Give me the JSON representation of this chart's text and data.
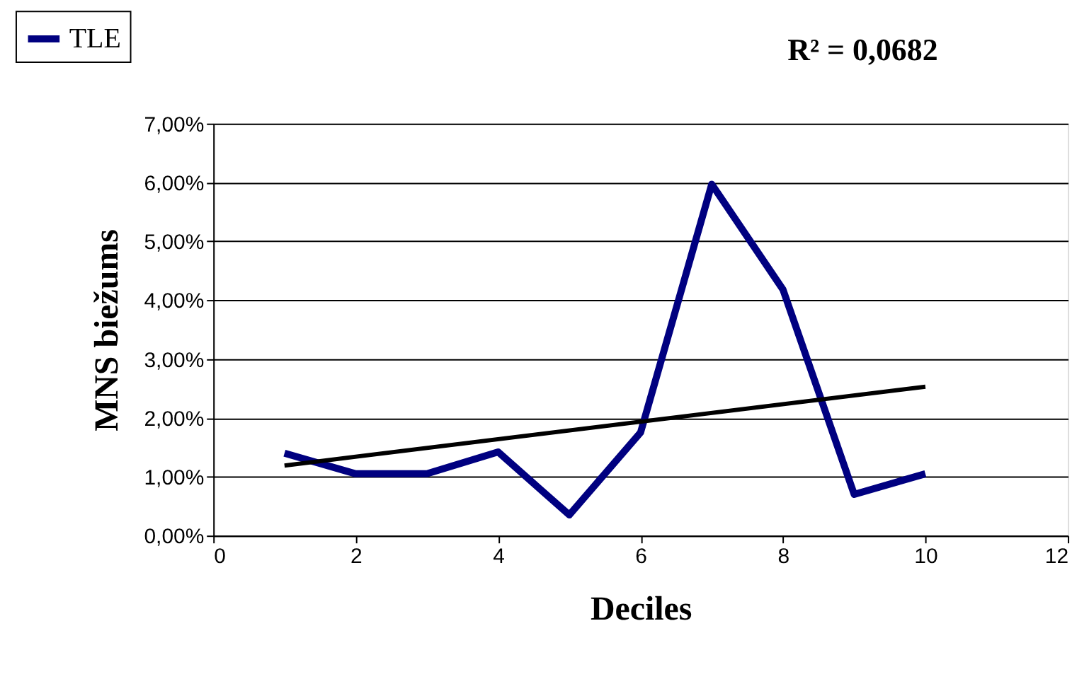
{
  "chart_data": {
    "type": "line",
    "xlabel": "Deciles",
    "ylabel": "MNS  biežums",
    "annotations": [
      "R² = 0,0682"
    ],
    "series": [
      {
        "name": "TLE",
        "color": "#000080",
        "x": [
          1,
          2,
          3,
          4,
          5,
          6,
          7,
          8,
          9,
          10
        ],
        "values": [
          1.4,
          1.05,
          1.05,
          1.42,
          0.35,
          1.75,
          5.97,
          4.18,
          0.7,
          1.05
        ]
      },
      {
        "type": "line",
        "color": "#000000",
        "x": [
          1,
          10
        ],
        "values": [
          1.19,
          2.53
        ]
      }
    ],
    "xlim": [
      0,
      12
    ],
    "xticks": [
      0,
      2,
      4,
      6,
      8,
      10,
      12
    ],
    "ylim": [
      0,
      7
    ],
    "yticks": [
      {
        "value": 0,
        "label": "0,00%"
      },
      {
        "value": 1,
        "label": "1,00%"
      },
      {
        "value": 2,
        "label": "2,00%"
      },
      {
        "value": 3,
        "label": "3,00%"
      },
      {
        "value": 4,
        "label": "4,00%"
      },
      {
        "value": 5,
        "label": "5,00%"
      },
      {
        "value": 6,
        "label": "6,00%"
      },
      {
        "value": 7,
        "label": "7,00%"
      }
    ],
    "grid": "y",
    "legend": "top left",
    "marker": "none",
    "line_style": "solid"
  }
}
